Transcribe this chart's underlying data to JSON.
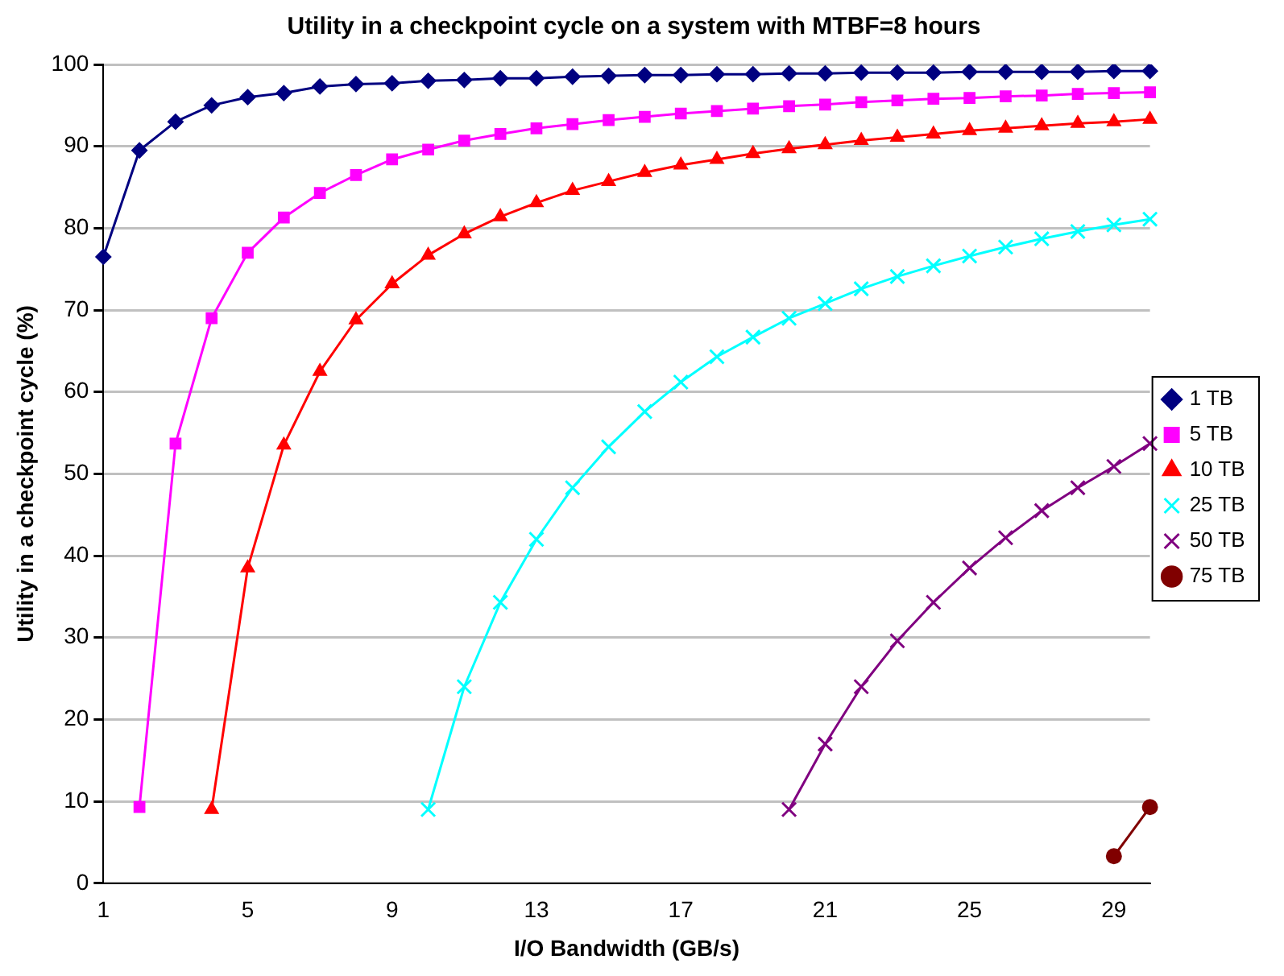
{
  "chart_data": {
    "type": "line",
    "title": "Utility in a checkpoint cycle on a system with MTBF=8 hours",
    "xlabel": "I/O Bandwidth (GB/s)",
    "ylabel": "Utility in a checkpoint cycle (%)",
    "categories": [
      "1",
      null,
      null,
      null,
      "5",
      null,
      null,
      null,
      "9",
      null,
      null,
      null,
      "13",
      null,
      null,
      null,
      "17",
      null,
      null,
      null,
      "21",
      null,
      null,
      null,
      "25",
      null,
      null,
      null,
      "29",
      null
    ],
    "series": [
      {
        "name": "1 TB",
        "color": "#000080",
        "marker": "diamond",
        "values": [
          76.5,
          89.5,
          93,
          95,
          96,
          96.5,
          97.3,
          97.6,
          97.7,
          98,
          98.1,
          98.3,
          98.3,
          98.5,
          98.6,
          98.7,
          98.7,
          98.8,
          98.8,
          98.9,
          98.9,
          99,
          99,
          99,
          99.1,
          99.1,
          99.1,
          99.1,
          99.2,
          99.2
        ]
      },
      {
        "name": "5 TB",
        "color": "#ff00ff",
        "marker": "square",
        "values": [
          null,
          9.3,
          53.7,
          69,
          77,
          81.3,
          84.3,
          86.5,
          88.4,
          89.6,
          90.7,
          91.5,
          92.2,
          92.7,
          93.2,
          93.6,
          94,
          94.3,
          94.6,
          94.9,
          95.1,
          95.4,
          95.6,
          95.8,
          95.9,
          96.1,
          96.2,
          96.4,
          96.5,
          96.6
        ]
      },
      {
        "name": "10 TB",
        "color": "#ff0000",
        "marker": "triangle",
        "values": [
          null,
          null,
          null,
          9,
          38.5,
          53.5,
          62.5,
          68.8,
          73.2,
          76.7,
          79.3,
          81.4,
          83.1,
          84.6,
          85.7,
          86.8,
          87.7,
          88.4,
          89.1,
          89.7,
          90.2,
          90.7,
          91.1,
          91.5,
          91.9,
          92.2,
          92.5,
          92.8,
          93,
          93.3
        ]
      },
      {
        "name": "25 TB",
        "color": "#00ffff",
        "marker": "cross",
        "values": [
          null,
          null,
          null,
          null,
          null,
          null,
          null,
          null,
          null,
          9,
          24,
          34.3,
          42,
          48.3,
          53.3,
          57.6,
          61.2,
          64.3,
          66.7,
          69,
          70.8,
          72.6,
          74.1,
          75.4,
          76.6,
          77.7,
          78.7,
          79.6,
          80.4,
          81.1
        ]
      },
      {
        "name": "50 TB",
        "color": "#800080",
        "marker": "cross",
        "values": [
          null,
          null,
          null,
          null,
          null,
          null,
          null,
          null,
          null,
          null,
          null,
          null,
          null,
          null,
          null,
          null,
          null,
          null,
          null,
          9,
          17,
          24,
          29.6,
          34.3,
          38.5,
          42.2,
          45.5,
          48.3,
          50.9,
          53.7
        ]
      },
      {
        "name": "75 TB",
        "color": "#800000",
        "marker": "circle",
        "values": [
          null,
          null,
          null,
          null,
          null,
          null,
          null,
          null,
          null,
          null,
          null,
          null,
          null,
          null,
          null,
          null,
          null,
          null,
          null,
          null,
          null,
          null,
          null,
          null,
          null,
          null,
          null,
          null,
          3.3,
          9.3
        ]
      }
    ],
    "ylim": [
      0,
      100
    ],
    "yticks": [
      0,
      10,
      20,
      30,
      40,
      50,
      60,
      70,
      80,
      90,
      100
    ],
    "grid": "y",
    "legend": "right",
    "line_style": "solid"
  }
}
